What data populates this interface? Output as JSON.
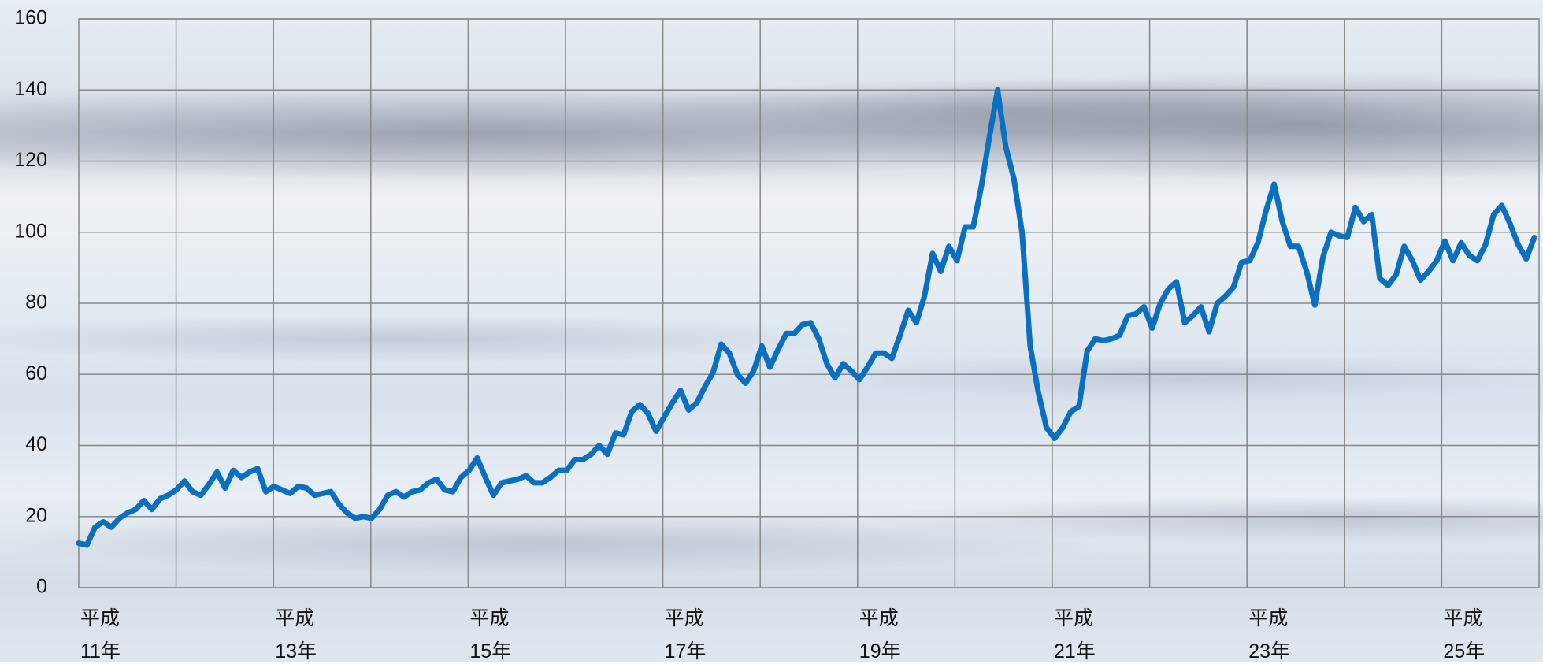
{
  "chart_data": {
    "type": "line",
    "categories": [
      "平成\n11年",
      null,
      null,
      null,
      null,
      null,
      null,
      null,
      null,
      null,
      null,
      null,
      null,
      null,
      null,
      null,
      null,
      null,
      null,
      null,
      null,
      null,
      null,
      null,
      "平成\n13年",
      null,
      null,
      null,
      null,
      null,
      null,
      null,
      null,
      null,
      null,
      null,
      null,
      null,
      null,
      null,
      null,
      null,
      null,
      null,
      null,
      null,
      null,
      null,
      "平成\n15年",
      null,
      null,
      null,
      null,
      null,
      null,
      null,
      null,
      null,
      null,
      null,
      null,
      null,
      null,
      null,
      null,
      null,
      null,
      null,
      null,
      null,
      null,
      null,
      "平成\n17年",
      null,
      null,
      null,
      null,
      null,
      null,
      null,
      null,
      null,
      null,
      null,
      null,
      null,
      null,
      null,
      null,
      null,
      null,
      null,
      null,
      null,
      null,
      null,
      "平成\n19年",
      null,
      null,
      null,
      null,
      null,
      null,
      null,
      null,
      null,
      null,
      null,
      null,
      null,
      null,
      null,
      null,
      null,
      null,
      null,
      null,
      null,
      null,
      null,
      "平成\n21年",
      null,
      null,
      null,
      null,
      null,
      null,
      null,
      null,
      null,
      null,
      null,
      null,
      null,
      null,
      null,
      null,
      null,
      null,
      null,
      null,
      null,
      null,
      null,
      "平成\n23年",
      null,
      null,
      null,
      null,
      null,
      null,
      null,
      null,
      null,
      null,
      null,
      null,
      null,
      null,
      null,
      null,
      null,
      null,
      null,
      null,
      null,
      null,
      null,
      "平成\n25年",
      null,
      null,
      null,
      null,
      null,
      null,
      null,
      null,
      null,
      null,
      null
    ],
    "values": [
      12.5,
      12,
      17,
      18.5,
      17,
      19.5,
      21,
      22,
      24.5,
      22,
      25,
      26,
      27.5,
      30,
      27,
      26,
      29,
      32.5,
      28,
      33,
      31,
      32.5,
      33.5,
      27,
      28.5,
      27.5,
      26.5,
      28.5,
      28,
      26,
      26.5,
      27,
      23.5,
      21,
      19.5,
      20,
      19.5,
      22,
      26,
      27,
      25.5,
      27,
      27.5,
      29.5,
      30.5,
      27.5,
      27,
      31,
      33,
      36.5,
      31,
      26,
      29.5,
      30,
      30.5,
      31.5,
      29.5,
      29.5,
      31,
      33,
      33,
      36,
      36,
      37.5,
      40,
      37.5,
      43.5,
      43,
      49.5,
      51.5,
      49,
      44,
      48,
      52,
      55.5,
      50,
      52,
      56.5,
      60.5,
      68.5,
      66,
      60,
      57.5,
      61,
      68,
      62,
      67,
      71.5,
      71.5,
      74,
      74.5,
      70,
      63,
      59,
      63,
      61,
      58.5,
      62,
      66,
      66,
      64.5,
      71,
      78,
      74.5,
      82,
      94,
      89,
      96,
      92,
      101.5,
      101.5,
      113,
      127,
      140,
      124,
      115,
      100,
      68,
      55,
      45,
      42,
      45,
      49.5,
      51,
      66.5,
      70,
      69.5,
      70,
      71,
      76.5,
      77,
      79,
      73,
      80,
      84,
      86,
      74.5,
      76.5,
      79,
      72,
      80,
      82,
      84.5,
      91.5,
      92,
      97,
      106,
      113.5,
      103,
      96,
      96,
      89,
      79.5,
      93,
      100,
      99,
      98.5,
      107,
      103,
      105,
      87,
      85,
      88,
      96,
      92,
      86.5,
      89,
      92,
      97.5,
      92,
      97,
      93.5,
      92,
      96.5,
      105,
      107.5,
      102.5,
      96.5,
      92.5,
      98.5
    ],
    "color": "#0b6fc1",
    "ylim": [
      0,
      160
    ],
    "yticks": [
      0,
      20,
      40,
      60,
      80,
      100,
      120,
      140,
      160
    ],
    "grid": true
  }
}
